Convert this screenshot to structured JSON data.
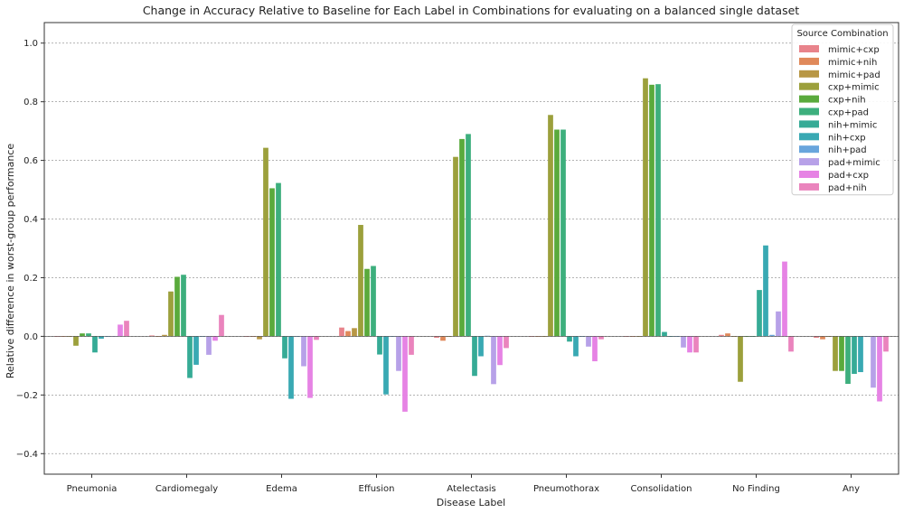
{
  "chart_data": {
    "type": "bar",
    "title": "Change in Accuracy Relative to Baseline for Each Label in Combinations for evaluating on a balanced single dataset",
    "xlabel": "Disease Label",
    "ylabel": "Relative difference in worst-group performance",
    "ylim": [
      -0.47,
      1.07
    ],
    "yticks": [
      -0.4,
      -0.2,
      0.0,
      0.2,
      0.4,
      0.6,
      0.8,
      1.0
    ],
    "ytick_labels": [
      "−0.4",
      "−0.2",
      "0.0",
      "0.2",
      "0.4",
      "0.6",
      "0.8",
      "1.0"
    ],
    "grid": "horizontal dotted",
    "legend_title": "Source Combination",
    "legend_position": "top-right",
    "categories": [
      "Pneumonia",
      "Cardiomegaly",
      "Edema",
      "Effusion",
      "Atelectasis",
      "Pneumothorax",
      "Consolidation",
      "No Finding",
      "Any"
    ],
    "series": [
      {
        "name": "mimic+cxp",
        "color": "#e8838b",
        "values": [
          0.0,
          0.003,
          0.0,
          0.03,
          -0.005,
          0.0,
          0.0,
          0.005,
          -0.005
        ]
      },
      {
        "name": "mimic+nih",
        "color": "#e0895a",
        "values": [
          0.0,
          0.0,
          0.0,
          0.018,
          -0.015,
          0.0,
          0.0,
          0.01,
          -0.01
        ]
      },
      {
        "name": "mimic+pad",
        "color": "#b89745",
        "values": [
          0.0,
          0.005,
          -0.01,
          0.028,
          0.0,
          0.0,
          0.0,
          0.0,
          0.0
        ]
      },
      {
        "name": "cxp+mimic",
        "color": "#9ca03c",
        "values": [
          -0.032,
          0.153,
          0.643,
          0.38,
          0.612,
          0.755,
          0.88,
          -0.155,
          -0.118
        ]
      },
      {
        "name": "cxp+nih",
        "color": "#5aaa3c",
        "values": [
          0.01,
          0.203,
          0.505,
          0.23,
          0.673,
          0.705,
          0.858,
          0.0,
          -0.118
        ]
      },
      {
        "name": "cxp+pad",
        "color": "#3daf7d",
        "values": [
          0.01,
          0.21,
          0.523,
          0.24,
          0.69,
          0.705,
          0.86,
          0.0,
          -0.162
        ]
      },
      {
        "name": "nih+mimic",
        "color": "#36ab96",
        "values": [
          -0.055,
          -0.142,
          -0.075,
          -0.062,
          -0.135,
          -0.018,
          0.015,
          0.158,
          -0.128
        ]
      },
      {
        "name": "nih+cxp",
        "color": "#39a9b3",
        "values": [
          -0.008,
          -0.097,
          -0.213,
          -0.198,
          -0.068,
          -0.068,
          0.0,
          0.31,
          -0.122
        ]
      },
      {
        "name": "nih+pad",
        "color": "#68a5dc",
        "values": [
          0.0,
          0.0,
          0.0,
          0.0,
          0.002,
          0.0,
          0.0,
          0.005,
          0.0
        ]
      },
      {
        "name": "pad+mimic",
        "color": "#b7a1e8",
        "values": [
          0.0,
          -0.063,
          -0.102,
          -0.118,
          -0.163,
          -0.035,
          -0.038,
          0.085,
          -0.175
        ]
      },
      {
        "name": "pad+cxp",
        "color": "#e683e4",
        "values": [
          0.04,
          -0.015,
          -0.21,
          -0.257,
          -0.098,
          -0.085,
          -0.055,
          0.255,
          -0.222
        ]
      },
      {
        "name": "pad+nih",
        "color": "#ea84bd",
        "values": [
          0.053,
          0.073,
          -0.012,
          -0.063,
          -0.04,
          -0.01,
          -0.055,
          -0.052,
          -0.052
        ]
      }
    ]
  }
}
